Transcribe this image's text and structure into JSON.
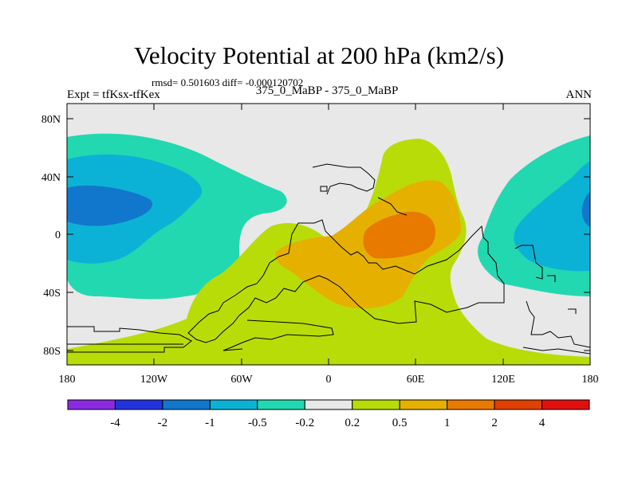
{
  "title": "Velocity Potential at 200 hPa (km2/s)",
  "stats": "rmsd= 0.501603 diff= -0.000120702",
  "left_label": "Expt = tfKsx-tfKex",
  "center_label": "375_0_MaBP - 375_0_MaBP",
  "right_label": "ANN",
  "axes": {
    "y_ticks": [
      "80N",
      "40N",
      "0",
      "40S",
      "80S"
    ],
    "x_ticks": [
      "180",
      "120W",
      "60W",
      "0",
      "60E",
      "120E",
      "180"
    ]
  },
  "colorbar": {
    "labels": [
      "-4",
      "-2",
      "-1",
      "-0.5",
      "-0.2",
      "0.2",
      "0.5",
      "1",
      "2",
      "4"
    ],
    "colors": [
      "#8a2be2",
      "#2233dd",
      "#1177cc",
      "#0cb2d6",
      "#22d8b0",
      "#e8e8e8",
      "#b8dc08",
      "#e6b000",
      "#e87a00",
      "#e04000",
      "#e01010"
    ]
  },
  "field_colors": {
    "background": "#e8e8e8",
    "pos_weak": "#b8dc08",
    "pos_mid": "#e6b000",
    "pos_strong": "#e87a00",
    "neg_weak": "#22d8b0",
    "neg_mid": "#0cb2d6",
    "neg_strong": "#1177cc",
    "coast": "#000000"
  }
}
